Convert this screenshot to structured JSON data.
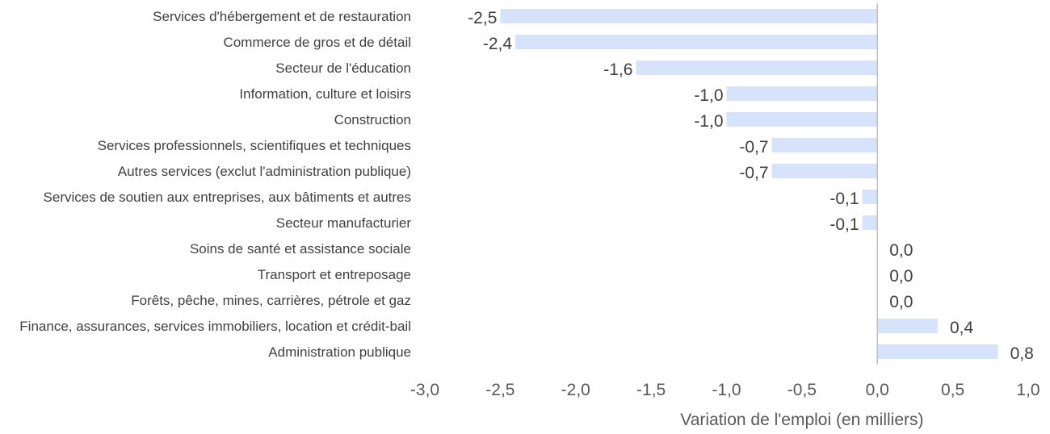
{
  "chart_data": {
    "type": "bar",
    "orientation": "horizontal",
    "categories": [
      "Services d'hébergement et de restauration",
      "Commerce de gros et de détail",
      "Secteur de l'éducation",
      "Information, culture et loisirs",
      "Construction",
      "Services professionnels, scientifiques et techniques",
      "Autres services (exclut l'administration publique)",
      "Services de soutien aux entreprises, aux bâtiments et autres",
      "Secteur manufacturier",
      "Soins de santé et assistance sociale",
      "Transport et entreposage",
      "Forêts, pêche, mines, carrières, pétrole et gaz",
      "Finance, assurances, services immobiliers, location et crédit-bail",
      "Administration publique"
    ],
    "values": [
      -2.5,
      -2.4,
      -1.6,
      -1.0,
      -1.0,
      -0.7,
      -0.7,
      -0.1,
      -0.1,
      0.0,
      0.0,
      0.0,
      0.4,
      0.8
    ],
    "data_labels": [
      "-2,5",
      "-2,4",
      "-1,6",
      "-1,0",
      "-1,0",
      "-0,7",
      "-0,7",
      "-0,1",
      "-0,1",
      "0,0",
      "0,0",
      "0,0",
      "0,4",
      "0,8"
    ],
    "xlim": [
      -3.0,
      1.0
    ],
    "x_ticks": [
      -3.0,
      -2.5,
      -2.0,
      -1.5,
      -1.0,
      -0.5,
      0.0,
      0.5,
      1.0
    ],
    "x_tick_labels": [
      "-3,0",
      "-2,5",
      "-2,0",
      "-1,5",
      "-1,0",
      "-0,5",
      "0,0",
      "0,5",
      "1,0"
    ],
    "xlabel": "Variation de l'emploi (en milliers)",
    "title": "",
    "grid": false,
    "legend": "none",
    "bar_color": "#d6e3fb",
    "axis_color": "#bfbfbf"
  }
}
